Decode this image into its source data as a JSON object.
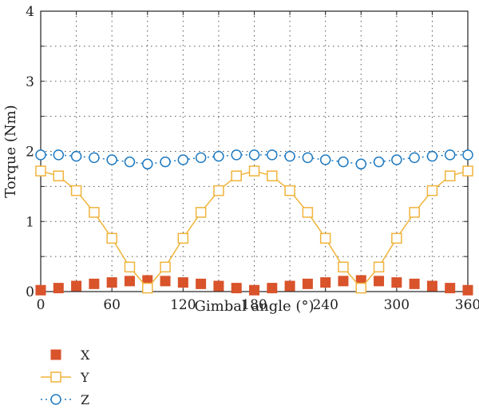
{
  "chart_data": {
    "type": "line",
    "title": "",
    "xlabel": "Gimbal angle (°)",
    "ylabel": "Torque (Nm)",
    "xlim": [
      0,
      360
    ],
    "ylim": [
      0,
      4
    ],
    "xticks": [
      0,
      60,
      120,
      180,
      240,
      300,
      360
    ],
    "yticks": [
      0,
      1,
      2,
      3,
      4
    ],
    "grid": true,
    "legend_position": "bottom-left",
    "x": [
      0,
      15,
      30,
      45,
      60,
      75,
      90,
      105,
      120,
      135,
      150,
      165,
      180,
      195,
      210,
      225,
      240,
      255,
      270,
      285,
      300,
      315,
      330,
      345,
      360
    ],
    "series": [
      {
        "name": "X",
        "marker": "filled-square",
        "color": "#d9532b",
        "line": "none",
        "values": [
          0.02,
          0.05,
          0.08,
          0.11,
          0.13,
          0.15,
          0.16,
          0.15,
          0.13,
          0.11,
          0.08,
          0.05,
          0.02,
          0.05,
          0.08,
          0.11,
          0.13,
          0.15,
          0.16,
          0.15,
          0.13,
          0.11,
          0.08,
          0.05,
          0.02
        ]
      },
      {
        "name": "Y",
        "marker": "open-square",
        "color": "#f0b43c",
        "line": "solid",
        "values": [
          1.72,
          1.65,
          1.44,
          1.13,
          0.76,
          0.35,
          0.05,
          0.35,
          0.76,
          1.13,
          1.44,
          1.65,
          1.72,
          1.65,
          1.44,
          1.13,
          0.76,
          0.35,
          0.05,
          0.35,
          0.76,
          1.13,
          1.44,
          1.65,
          1.72
        ]
      },
      {
        "name": "Z",
        "marker": "open-circle",
        "color": "#1f7ac0",
        "line": "dotted",
        "values": [
          1.95,
          1.95,
          1.93,
          1.91,
          1.88,
          1.85,
          1.82,
          1.85,
          1.88,
          1.91,
          1.93,
          1.95,
          1.95,
          1.95,
          1.93,
          1.91,
          1.88,
          1.85,
          1.82,
          1.85,
          1.88,
          1.91,
          1.93,
          1.95,
          1.95
        ]
      }
    ]
  }
}
